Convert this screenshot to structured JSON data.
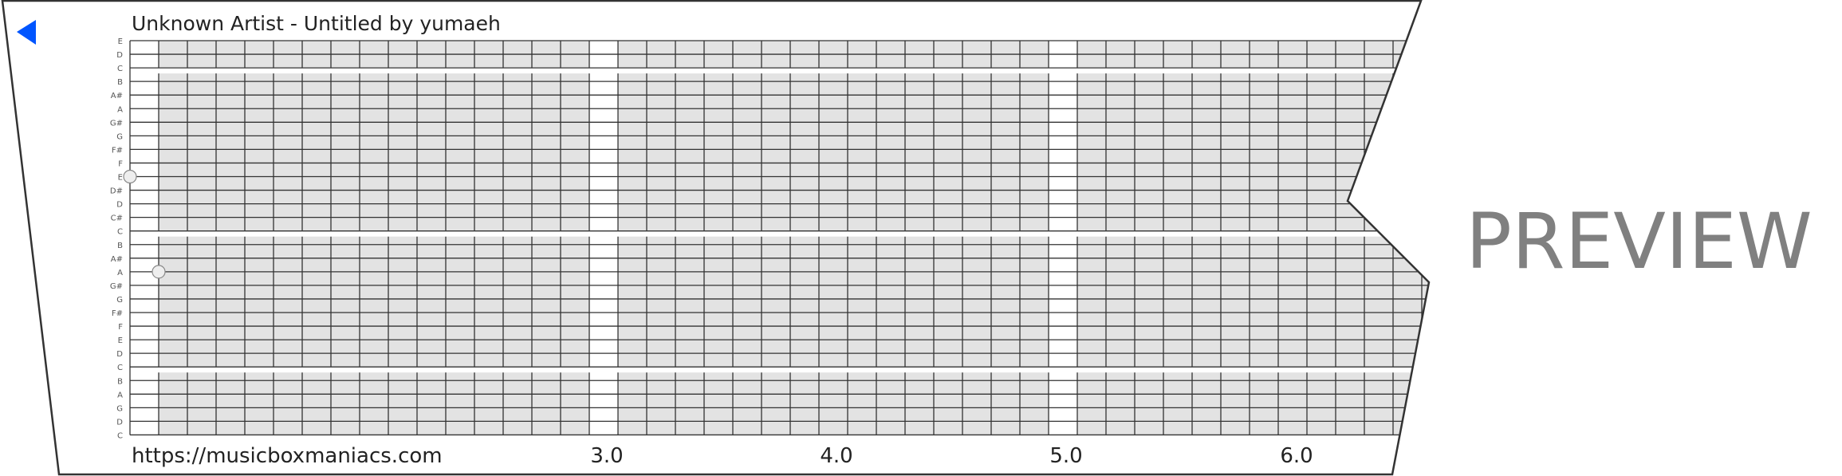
{
  "header": {
    "title": "Unknown Artist - Untitled by yumaeh",
    "back_icon": "left-triangle-icon",
    "accent_color": "#0055ff"
  },
  "strip": {
    "note_labels": [
      "E",
      "D",
      "C",
      "B",
      "A#",
      "A",
      "G#",
      "G",
      "F#",
      "F",
      "E",
      "D#",
      "D",
      "C#",
      "C",
      "B",
      "A#",
      "A",
      "G#",
      "G",
      "F#",
      "F",
      "E",
      "D",
      "C",
      "B",
      "A",
      "G",
      "D",
      "C"
    ],
    "section_breaks_after": [
      "C",
      "C",
      "C"
    ],
    "measure_labels": [
      "3.0",
      "4.0",
      "5.0",
      "6.0"
    ],
    "notes": [
      {
        "pitch": "E",
        "row": 10,
        "tick": 0
      },
      {
        "pitch": "A",
        "row": 17,
        "tick": 1
      }
    ],
    "cell_color": "#e3e3e3",
    "line_color": "#333333"
  },
  "footer": {
    "url": "https://musicboxmaniacs.com"
  },
  "watermark": {
    "text": "PREVIEW",
    "color": "#808080"
  }
}
